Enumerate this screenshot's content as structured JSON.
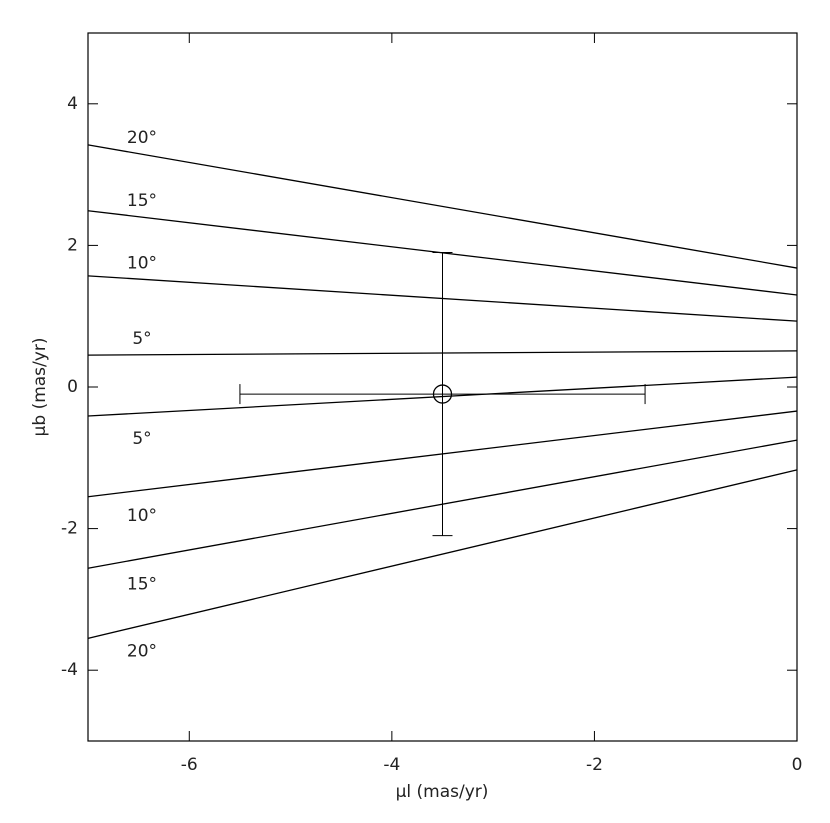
{
  "chart_data": {
    "type": "line",
    "x_label": "μl (mas/yr)",
    "y_label": "μb (mas/yr)",
    "x": [
      -7,
      0
    ],
    "series": [
      {
        "name": "20°",
        "color": "#000000",
        "values": [
          3.42,
          1.68
        ]
      },
      {
        "name": "15°",
        "color": "#000000",
        "values": [
          2.49,
          1.3
        ]
      },
      {
        "name": "10°",
        "color": "#000000",
        "values": [
          1.57,
          0.93
        ]
      },
      {
        "name": "5°",
        "color": "#000000",
        "values": [
          0.45,
          0.51
        ]
      },
      {
        "name": "5°",
        "color": "#000000",
        "values": [
          -0.41,
          0.14
        ]
      },
      {
        "name": "10°",
        "color": "#000000",
        "values": [
          -1.55,
          -0.34
        ]
      },
      {
        "name": "15°",
        "color": "#000000",
        "values": [
          -2.56,
          -0.75
        ]
      },
      {
        "name": "20°",
        "color": "#000000",
        "values": [
          -3.55,
          -1.17
        ]
      }
    ],
    "point": {
      "x": -3.5,
      "y": -0.1,
      "xerr": 2,
      "yerr": 2
    },
    "xlim": [
      -7,
      0
    ],
    "ylim": [
      -5,
      5
    ],
    "xticks": [
      -6,
      -4,
      -2,
      0
    ],
    "yticks": [
      -4,
      -2,
      0,
      2,
      4
    ]
  }
}
